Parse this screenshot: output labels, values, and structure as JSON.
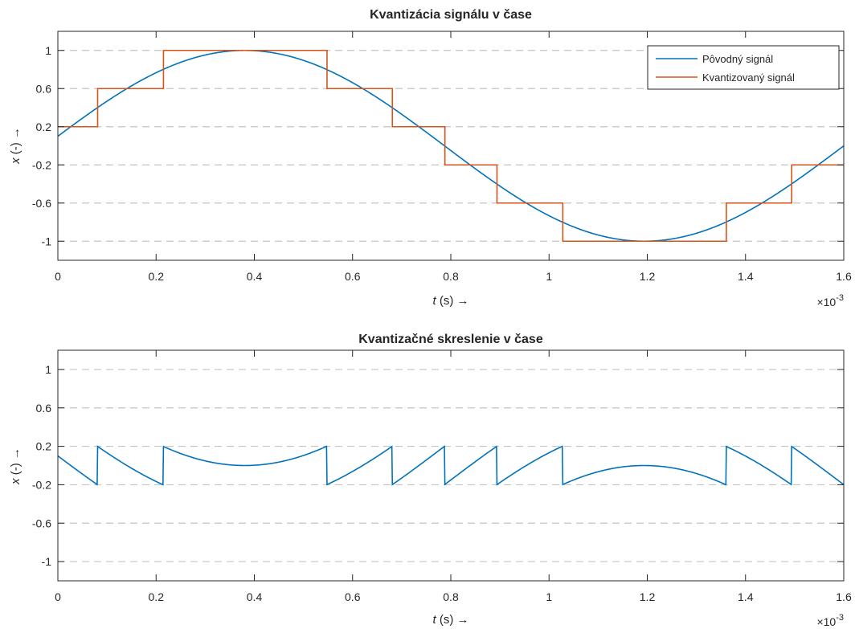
{
  "chart_data": [
    {
      "type": "line",
      "title": "Kvantizácia signálu v čase",
      "xlabel": {
        "var": "t",
        "unit": " (s) ",
        "arrow": "→"
      },
      "ylabel": {
        "var": "x",
        "unit": " (-) ",
        "arrow": "→"
      },
      "x_exponent": {
        "base": "×10",
        "power": "-3"
      },
      "xlim": [
        0,
        1.6
      ],
      "ylim": [
        -1.2,
        1.2
      ],
      "x_scale_factor": 0.001,
      "xticks": [
        0,
        0.2,
        0.4,
        0.6,
        0.8,
        1,
        1.2,
        1.4,
        1.6
      ],
      "xtick_labels": [
        "0",
        "0.2",
        "0.4",
        "0.6",
        "0.8",
        "1",
        "1.2",
        "1.4",
        "1.6"
      ],
      "yticks": [
        1,
        0.6,
        0.2,
        -0.2,
        -0.6,
        -1
      ],
      "ytick_labels": [
        "1",
        "0.6",
        "0.2",
        "-0.2",
        "-0.6",
        "-1"
      ],
      "grid": "horizontal dashed",
      "legend_position": "top-right",
      "series": [
        {
          "name": "Pôvodný signál",
          "color": "#0072BD",
          "kind": "sine",
          "amplitude": 1,
          "frequency_hz": 615,
          "phase_rad": 0.1,
          "x_range": [
            0,
            1.6
          ]
        },
        {
          "name": "Kvantizovaný signál",
          "color": "#D95319",
          "kind": "step",
          "levels": [
            -1,
            -0.6,
            -0.2,
            0.2,
            0.6,
            1
          ],
          "x_range": [
            0,
            1.6
          ]
        }
      ]
    },
    {
      "type": "line",
      "title": "Kvantizačné skreslenie v čase",
      "xlabel": {
        "var": "t",
        "unit": " (s) ",
        "arrow": "→"
      },
      "ylabel": {
        "var": "x",
        "unit": " (-) ",
        "arrow": "→"
      },
      "x_exponent": {
        "base": "×10",
        "power": "-3"
      },
      "xlim": [
        0,
        1.6
      ],
      "ylim": [
        -1.2,
        1.2
      ],
      "x_scale_factor": 0.001,
      "xticks": [
        0,
        0.2,
        0.4,
        0.6,
        0.8,
        1,
        1.2,
        1.4,
        1.6
      ],
      "xtick_labels": [
        "0",
        "0.2",
        "0.4",
        "0.6",
        "0.8",
        "1",
        "1.2",
        "1.4",
        "1.6"
      ],
      "yticks": [
        1,
        0.6,
        0.2,
        -0.2,
        -0.6,
        -1
      ],
      "ytick_labels": [
        "1",
        "0.6",
        "0.2",
        "-0.2",
        "-0.6",
        "-1"
      ],
      "grid": "horizontal dashed",
      "series": [
        {
          "color": "#0072BD",
          "kind": "quantization_error",
          "x_range": [
            0,
            1.6
          ]
        }
      ]
    }
  ]
}
